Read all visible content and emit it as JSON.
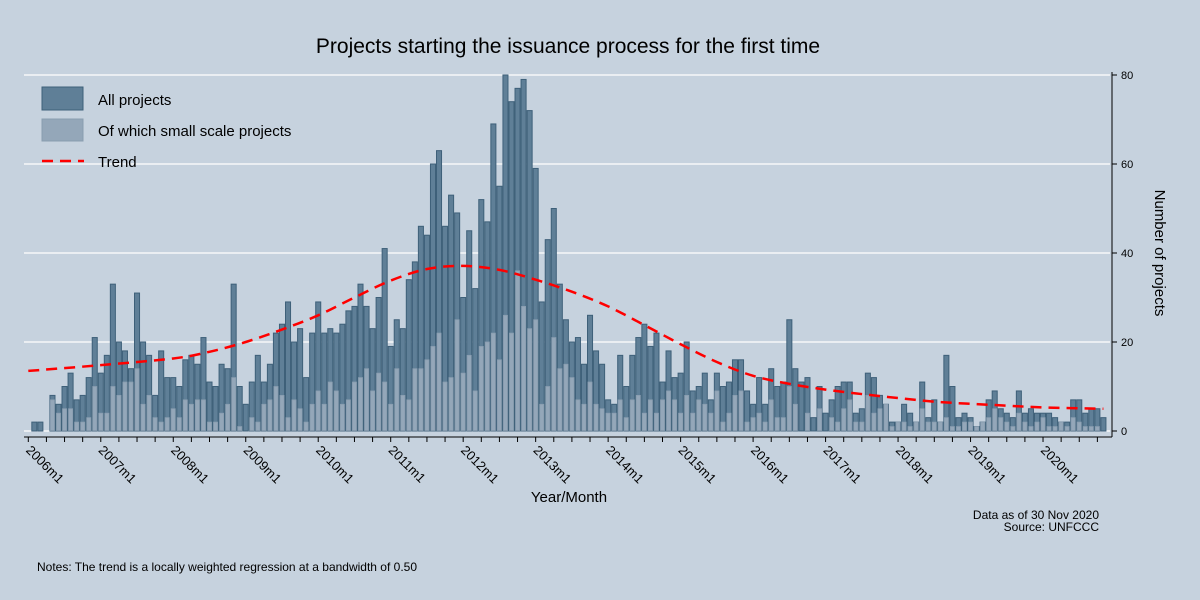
{
  "chart_data": {
    "type": "bar",
    "title": "Projects starting the issuance process for the first time",
    "xlabel": "Year/Month",
    "ylabel": "Number of projects",
    "ylim": [
      0,
      80
    ],
    "yticks": [
      0,
      20,
      40,
      60,
      80
    ],
    "xtick_labels": [
      "2006m1",
      "2007m1",
      "2008m1",
      "2009m1",
      "2010m1",
      "2011m1",
      "2012m1",
      "2013m1",
      "2014m1",
      "2015m1",
      "2016m1",
      "2017m1",
      "2018m1",
      "2019m1",
      "2020m1"
    ],
    "grid": true,
    "yaxis_side": "right",
    "legend_placement": "top-left",
    "colors": {
      "all": "#5f7f97",
      "all_border": "#3e6079",
      "small": "#94a7b9",
      "small_border": "#899db0",
      "trend": "#ff0000",
      "gridline": "#ffffff",
      "background": "#c6d2de"
    },
    "x": [
      "2006m1",
      "2006m2",
      "2006m3",
      "2006m4",
      "2006m5",
      "2006m6",
      "2006m7",
      "2006m8",
      "2006m9",
      "2006m10",
      "2006m11",
      "2006m12",
      "2007m1",
      "2007m2",
      "2007m3",
      "2007m4",
      "2007m5",
      "2007m6",
      "2007m7",
      "2007m8",
      "2007m9",
      "2007m10",
      "2007m11",
      "2007m12",
      "2008m1",
      "2008m2",
      "2008m3",
      "2008m4",
      "2008m5",
      "2008m6",
      "2008m7",
      "2008m8",
      "2008m9",
      "2008m10",
      "2008m11",
      "2008m12",
      "2009m1",
      "2009m2",
      "2009m3",
      "2009m4",
      "2009m5",
      "2009m6",
      "2009m7",
      "2009m8",
      "2009m9",
      "2009m10",
      "2009m11",
      "2009m12",
      "2010m1",
      "2010m2",
      "2010m3",
      "2010m4",
      "2010m5",
      "2010m6",
      "2010m7",
      "2010m8",
      "2010m9",
      "2010m10",
      "2010m11",
      "2010m12",
      "2011m1",
      "2011m2",
      "2011m3",
      "2011m4",
      "2011m5",
      "2011m6",
      "2011m7",
      "2011m8",
      "2011m9",
      "2011m10",
      "2011m11",
      "2011m12",
      "2012m1",
      "2012m2",
      "2012m3",
      "2012m4",
      "2012m5",
      "2012m6",
      "2012m7",
      "2012m8",
      "2012m9",
      "2012m10",
      "2012m11",
      "2012m12",
      "2013m1",
      "2013m2",
      "2013m3",
      "2013m4",
      "2013m5",
      "2013m6",
      "2013m7",
      "2013m8",
      "2013m9",
      "2013m10",
      "2013m11",
      "2013m12",
      "2014m1",
      "2014m2",
      "2014m3",
      "2014m4",
      "2014m5",
      "2014m6",
      "2014m7",
      "2014m8",
      "2014m9",
      "2014m10",
      "2014m11",
      "2014m12",
      "2015m1",
      "2015m2",
      "2015m3",
      "2015m4",
      "2015m5",
      "2015m6",
      "2015m7",
      "2015m8",
      "2015m9",
      "2015m10",
      "2015m11",
      "2015m12",
      "2016m1",
      "2016m2",
      "2016m3",
      "2016m4",
      "2016m5",
      "2016m6",
      "2016m7",
      "2016m8",
      "2016m9",
      "2016m10",
      "2016m11",
      "2016m12",
      "2017m1",
      "2017m2",
      "2017m3",
      "2017m4",
      "2017m5",
      "2017m6",
      "2017m7",
      "2017m8",
      "2017m9",
      "2017m10",
      "2017m11",
      "2017m12",
      "2018m1",
      "2018m2",
      "2018m3",
      "2018m4",
      "2018m5",
      "2018m6",
      "2018m7",
      "2018m8",
      "2018m9",
      "2018m10",
      "2018m11",
      "2018m12",
      "2019m1",
      "2019m2",
      "2019m3",
      "2019m4",
      "2019m5",
      "2019m6",
      "2019m7",
      "2019m8",
      "2019m9",
      "2019m10",
      "2019m11",
      "2019m12",
      "2020m1",
      "2020m2",
      "2020m3",
      "2020m4",
      "2020m5",
      "2020m6",
      "2020m7",
      "2020m8",
      "2020m9",
      "2020m10",
      "2020m11"
    ],
    "series": [
      {
        "name": "All projects",
        "values": [
          0,
          2,
          2,
          0,
          8,
          6,
          10,
          13,
          7,
          8,
          12,
          21,
          13,
          17,
          33,
          20,
          18,
          14,
          31,
          20,
          17,
          8,
          18,
          12,
          12,
          10,
          16,
          17,
          15,
          21,
          11,
          10,
          15,
          14,
          33,
          10,
          6,
          11,
          17,
          11,
          15,
          22,
          24,
          29,
          20,
          23,
          12,
          22,
          29,
          22,
          23,
          22,
          24,
          27,
          28,
          33,
          28,
          23,
          30,
          41,
          19,
          25,
          23,
          34,
          38,
          46,
          44,
          60,
          63,
          46,
          53,
          49,
          30,
          45,
          32,
          52,
          47,
          69,
          55,
          80,
          74,
          77,
          79,
          72,
          59,
          29,
          43,
          50,
          33,
          25,
          20,
          21,
          15,
          26,
          18,
          15,
          7,
          6,
          17,
          10,
          17,
          21,
          24,
          19,
          22,
          11,
          18,
          12,
          13,
          20,
          9,
          10,
          13,
          7,
          13,
          10,
          11,
          16,
          16,
          9,
          6,
          12,
          6,
          14,
          10,
          11,
          25,
          14,
          11,
          12,
          3,
          10,
          4,
          7,
          10,
          11,
          11,
          4,
          5,
          13,
          12,
          8,
          6,
          2,
          2,
          6,
          4,
          2,
          11,
          3,
          7,
          2,
          17,
          10,
          3,
          4,
          3,
          1,
          2,
          7,
          9,
          5,
          4,
          3,
          9,
          4,
          5,
          4,
          4,
          4,
          3,
          2,
          2,
          7,
          7,
          4,
          5,
          5,
          3
        ]
      },
      {
        "name": "Of which small scale projects",
        "values": [
          0,
          0,
          0,
          0,
          7,
          4,
          5,
          5,
          2,
          2,
          3,
          10,
          4,
          4,
          10,
          8,
          11,
          11,
          14,
          6,
          8,
          3,
          2,
          3,
          5,
          3,
          7,
          6,
          7,
          7,
          2,
          2,
          4,
          6,
          12,
          1,
          0,
          3,
          2,
          6,
          7,
          10,
          8,
          3,
          7,
          5,
          2,
          6,
          9,
          6,
          11,
          9,
          6,
          7,
          11,
          12,
          14,
          9,
          13,
          11,
          6,
          14,
          8,
          7,
          14,
          14,
          16,
          19,
          22,
          11,
          12,
          25,
          13,
          17,
          9,
          19,
          20,
          22,
          16,
          26,
          22,
          36,
          28,
          23,
          25,
          6,
          10,
          21,
          14,
          15,
          12,
          7,
          6,
          11,
          6,
          5,
          4,
          4,
          7,
          3,
          7,
          8,
          4,
          7,
          4,
          7,
          9,
          7,
          4,
          8,
          4,
          7,
          6,
          4,
          9,
          2,
          4,
          8,
          9,
          2,
          3,
          4,
          2,
          7,
          3,
          3,
          10,
          6,
          0,
          4,
          0,
          5,
          0,
          3,
          2,
          5,
          7,
          2,
          2,
          8,
          4,
          5,
          6,
          1,
          2,
          2,
          1,
          2,
          5,
          2,
          2,
          2,
          3,
          1,
          1,
          2,
          2,
          1,
          2,
          3,
          5,
          3,
          2,
          1,
          4,
          2,
          1,
          2,
          3,
          1,
          1,
          2,
          1,
          3,
          2,
          1,
          1,
          1,
          0
        ]
      }
    ],
    "trend": {
      "name": "Trend",
      "x": [
        "2006m1",
        "2007m1",
        "2008m1",
        "2008m7",
        "2009m1",
        "2009m7",
        "2010m1",
        "2010m7",
        "2011m1",
        "2011m7",
        "2012m1",
        "2012m7",
        "2013m1",
        "2013m7",
        "2014m1",
        "2014m7",
        "2015m1",
        "2015m7",
        "2016m1",
        "2016m7",
        "2017m1",
        "2017m7",
        "2018m1",
        "2018m7",
        "2019m1",
        "2019m7",
        "2020m1",
        "2020m11"
      ],
      "y": [
        13.5,
        14.8,
        16.3,
        17.8,
        20,
        22.8,
        26,
        30,
        33.8,
        36.4,
        37.1,
        36.2,
        34,
        31.3,
        28,
        23.8,
        19.5,
        15.5,
        12.4,
        10.6,
        9.3,
        8.3,
        7.4,
        6.6,
        6.1,
        5.7,
        5.3,
        5.0
      ]
    }
  },
  "legend": [
    {
      "label": "All projects"
    },
    {
      "label": "Of which small scale projects"
    },
    {
      "label": "Trend"
    }
  ],
  "footer": {
    "data_as_of": "Data as of 30 Nov 2020",
    "source": "Source: UNFCCC",
    "notes": "Notes: The trend is a locally weighted regression at a bandwidth of 0.50"
  }
}
